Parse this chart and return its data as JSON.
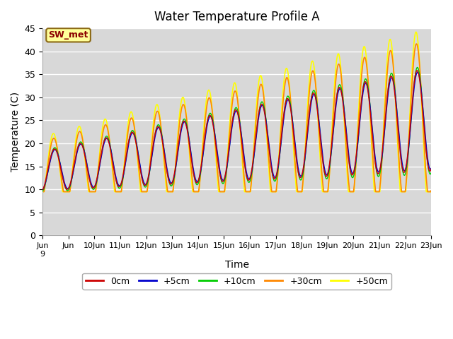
{
  "title": "Water Temperature Profile A",
  "xlabel": "Time",
  "ylabel": "Temperature (C)",
  "ylim": [
    0,
    45
  ],
  "yticks": [
    0,
    5,
    10,
    15,
    20,
    25,
    30,
    35,
    40,
    45
  ],
  "colors": {
    "0cm": "#cc0000",
    "+5cm": "#0000cc",
    "+10cm": "#00cc00",
    "+30cm": "#ff8800",
    "+50cm": "#ffff00"
  },
  "legend_labels": [
    "0cm",
    "+5cm",
    "+10cm",
    "+30cm",
    "+50cm"
  ],
  "annotation_text": "SW_met",
  "annotation_color": "#8b0000",
  "annotation_bg": "#ffff99",
  "fig_bg": "#ffffff",
  "axes_bg": "#d8d8d8",
  "grid_color": "#ffffff",
  "tick_positions": [
    0,
    1,
    2,
    3,
    4,
    5,
    6,
    7,
    8,
    9,
    10,
    11,
    12,
    13,
    14,
    15
  ],
  "tick_labels": [
    "Jun\n9",
    "Jun",
    "10Jun",
    "11Jun",
    "12Jun",
    "13Jun",
    "14Jun",
    "15Jun",
    "16Jun",
    "17Jun",
    "18Jun",
    "19Jun",
    "20Jun",
    "21Jun",
    "22Jun",
    "23Jun"
  ]
}
